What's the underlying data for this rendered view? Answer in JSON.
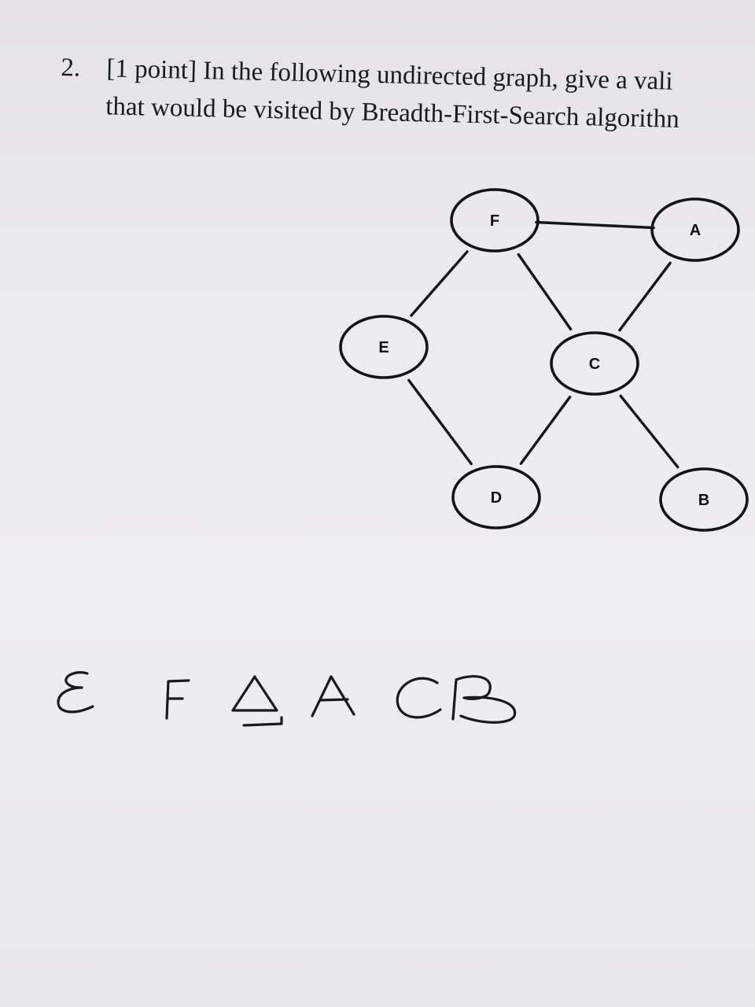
{
  "question": {
    "number": "2.",
    "line1": "[1 point] In the following undirected graph, give a vali",
    "line2": "that would be visited by Breadth-First-Search algorithn"
  },
  "graph": {
    "nodes": [
      {
        "id": "F",
        "label": "F"
      },
      {
        "id": "A",
        "label": "A"
      },
      {
        "id": "E",
        "label": "E"
      },
      {
        "id": "C",
        "label": "C"
      },
      {
        "id": "D",
        "label": "D"
      },
      {
        "id": "B",
        "label": "B"
      }
    ],
    "edges": [
      [
        "F",
        "A"
      ],
      [
        "F",
        "E"
      ],
      [
        "F",
        "C"
      ],
      [
        "A",
        "C"
      ],
      [
        "E",
        "D"
      ],
      [
        "C",
        "D"
      ],
      [
        "C",
        "B"
      ]
    ]
  },
  "answer": {
    "text": "EFDACB"
  }
}
